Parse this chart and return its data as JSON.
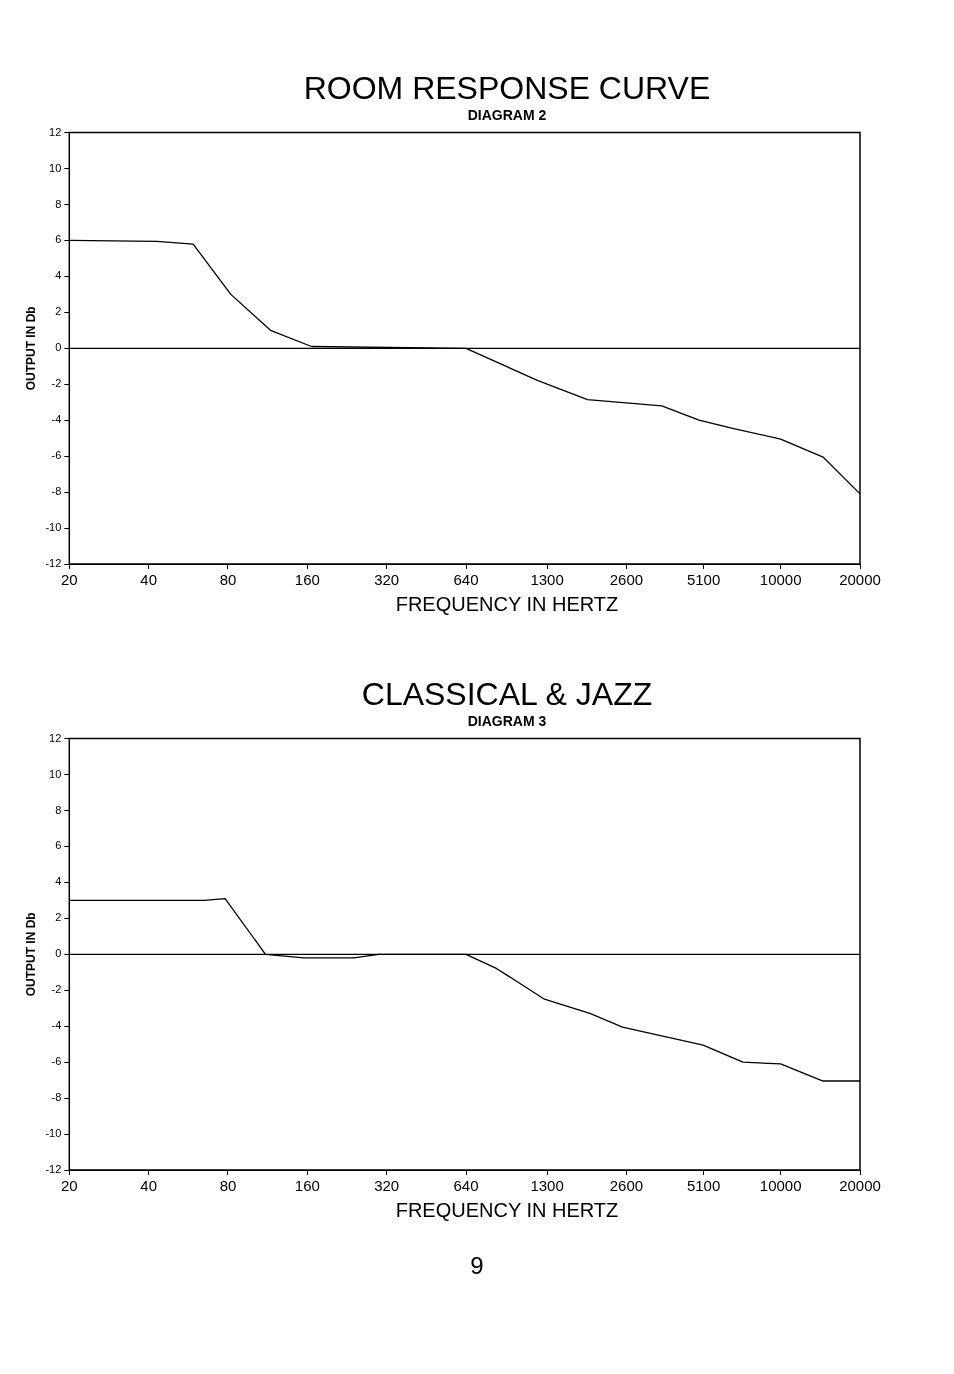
{
  "chart_data": [
    {
      "type": "line",
      "title": "ROOM RESPONSE CURVE",
      "subtitle": "DIAGRAM 2",
      "xlabel": "FREQUENCY IN HERTZ",
      "ylabel": "OUTPUT IN Db",
      "log": "x",
      "legend": false,
      "marker": "none",
      "line_style": "solid",
      "xlim": [
        20,
        20000
      ],
      "xticks": [
        20,
        40,
        80,
        160,
        320,
        640,
        1300,
        2600,
        5100,
        10000,
        20000
      ],
      "ylim": [
        -12,
        12
      ],
      "yticks": [
        -12,
        -10,
        -8,
        -6,
        -4,
        -2,
        0,
        2,
        4,
        6,
        8,
        10,
        12
      ],
      "ref_lines": [
        {
          "axis": "y",
          "value": 0,
          "color": "#000000"
        }
      ],
      "series": [
        {
          "color": "#000000",
          "x": [
            20,
            43,
            59,
            82,
            116,
            166,
            640,
            1200,
            1850,
            3540,
            4900,
            6570,
            10000,
            14480,
            20000
          ],
          "values": [
            6,
            5.95,
            5.8,
            3,
            1,
            0.1,
            0,
            -1.8,
            -2.85,
            -3.2,
            -4,
            -4.45,
            -5.05,
            -6.05,
            -8.1
          ]
        }
      ]
    },
    {
      "type": "line",
      "title": "CLASSICAL & JAZZ",
      "subtitle": "DIAGRAM 3",
      "xlabel": "FREQUENCY IN HERTZ",
      "ylabel": "OUTPUT IN Db",
      "log": "x",
      "legend": false,
      "marker": "none",
      "line_style": "solid",
      "xlim": [
        20,
        20000
      ],
      "xticks": [
        20,
        40,
        80,
        160,
        320,
        640,
        1300,
        2600,
        5100,
        10000,
        20000
      ],
      "ylim": [
        -12,
        12
      ],
      "yticks": [
        -12,
        -10,
        -8,
        -6,
        -4,
        -2,
        0,
        2,
        4,
        6,
        8,
        10,
        12
      ],
      "ref_lines": [
        {
          "axis": "y",
          "value": 0,
          "color": "#000000"
        }
      ],
      "annotations": [
        "9"
      ],
      "series": [
        {
          "color": "#000000",
          "x": [
            20,
            65,
            78,
            111,
            155,
            240,
            299,
            640,
            838,
            1270,
            1900,
            2510,
            5080,
            7190,
            10000,
            14480,
            20000
          ],
          "values": [
            3,
            3,
            3.1,
            0,
            -0.2,
            -0.2,
            0,
            0,
            -0.8,
            -2.5,
            -3.3,
            -4.05,
            -5.05,
            -6,
            -6.1,
            -7.05,
            -7.05
          ]
        }
      ]
    }
  ]
}
